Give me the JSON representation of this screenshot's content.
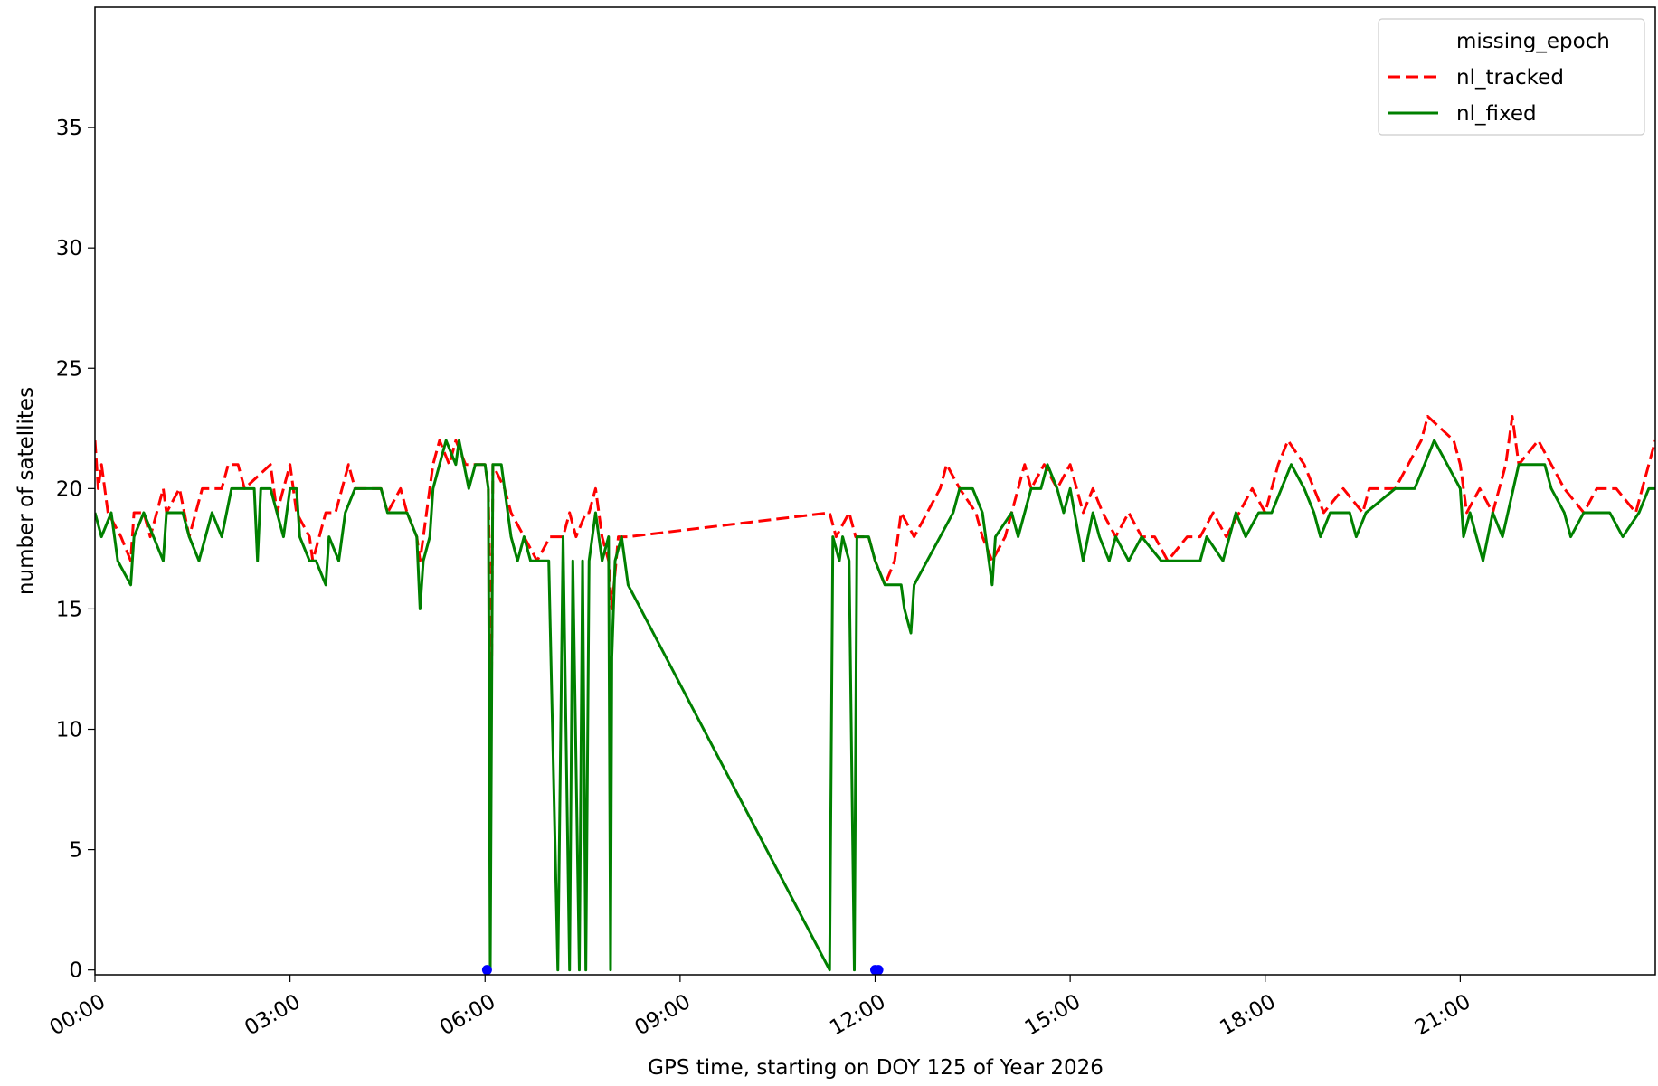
{
  "chart_data": {
    "type": "line",
    "xlabel": "GPS time, starting on DOY 125 of Year 2026",
    "ylabel": "number of satellites",
    "xlim": [
      0,
      24
    ],
    "ylim": [
      -0.2,
      40
    ],
    "xticks": [
      {
        "value": 0,
        "label": "00:00"
      },
      {
        "value": 3,
        "label": "03:00"
      },
      {
        "value": 6,
        "label": "06:00"
      },
      {
        "value": 9,
        "label": "09:00"
      },
      {
        "value": 12,
        "label": "12:00"
      },
      {
        "value": 15,
        "label": "15:00"
      },
      {
        "value": 18,
        "label": "18:00"
      },
      {
        "value": 21,
        "label": "21:00"
      }
    ],
    "yticks": [
      0,
      5,
      10,
      15,
      20,
      25,
      30,
      35
    ],
    "legend": "upper right",
    "series": [
      {
        "name": "missing_epoch",
        "color": "#0000ff",
        "linestyle": "none",
        "marker": "o",
        "x": [
          6.03,
          12.0,
          12.05
        ],
        "values": [
          0,
          0,
          0
        ]
      },
      {
        "name": "nl_tracked",
        "color": "#ff0000",
        "linestyle": "dashed",
        "x": [
          0,
          0.05,
          0.1,
          0.2,
          0.4,
          0.55,
          0.6,
          0.75,
          0.85,
          1.05,
          1.1,
          1.3,
          1.45,
          1.55,
          1.65,
          1.95,
          2.05,
          2.2,
          2.3,
          2.7,
          2.8,
          3.0,
          3.1,
          3.3,
          3.35,
          3.55,
          3.7,
          3.8,
          3.9,
          4.0,
          4.4,
          4.5,
          4.7,
          4.8,
          4.95,
          5.0,
          5.05,
          5.2,
          5.3,
          5.45,
          5.55,
          5.7,
          6.0,
          6.05,
          6.1,
          6.12,
          6.3,
          6.4,
          6.6,
          6.8,
          7.0,
          7.2,
          7.3,
          7.4,
          7.55,
          7.6,
          7.7,
          7.8,
          7.9,
          7.95,
          8.05,
          8.2,
          11.3,
          11.4,
          11.6,
          11.7,
          11.9,
          12.0,
          12.15,
          12.3,
          12.35,
          12.4,
          12.6,
          12.8,
          13.0,
          13.1,
          13.3,
          13.55,
          13.65,
          13.8,
          14.0,
          14.1,
          14.3,
          14.4,
          14.6,
          14.8,
          15.0,
          15.2,
          15.35,
          15.5,
          15.7,
          15.9,
          16.1,
          16.3,
          16.5,
          16.8,
          17.0,
          17.2,
          17.4,
          17.6,
          17.8,
          18.0,
          18.2,
          18.35,
          18.6,
          18.75,
          18.9,
          19.2,
          19.5,
          19.6,
          20.0,
          20.2,
          20.4,
          20.5,
          20.9,
          21.0,
          21.1,
          21.3,
          21.5,
          21.7,
          21.8,
          21.9,
          22.2,
          22.4,
          22.6,
          22.9,
          23.1,
          23.4,
          23.7,
          23.9,
          24.0
        ],
        "values": [
          22,
          20,
          21,
          19,
          18,
          17,
          19,
          19,
          18,
          20,
          19,
          20,
          18,
          19,
          20,
          20,
          21,
          21,
          20,
          21,
          19,
          21,
          19,
          18,
          17,
          19,
          19,
          20,
          21,
          20,
          20,
          19,
          20,
          19,
          18,
          17,
          18,
          21,
          22,
          21,
          22,
          21,
          21,
          20,
          12,
          21,
          20,
          19,
          18,
          17,
          18,
          18,
          19,
          18,
          19,
          19,
          20,
          18,
          17,
          15,
          18,
          18,
          19,
          18,
          19,
          18,
          18,
          17,
          16,
          17,
          18,
          19,
          18,
          19,
          20,
          21,
          20,
          19,
          18,
          17,
          18,
          19,
          21,
          20,
          21,
          20,
          21,
          19,
          20,
          19,
          18,
          19,
          18,
          18,
          17,
          18,
          18,
          19,
          18,
          19,
          20,
          19,
          21,
          22,
          21,
          20,
          19,
          20,
          19,
          20,
          20,
          21,
          22,
          23,
          22,
          21,
          19,
          20,
          19,
          21,
          23,
          21,
          22,
          21,
          20,
          19,
          20,
          20,
          19,
          21,
          22
        ]
      },
      {
        "name": "nl_fixed",
        "color": "#008000",
        "linestyle": "solid",
        "x": [
          0,
          0.1,
          0.25,
          0.35,
          0.55,
          0.6,
          0.75,
          1.05,
          1.1,
          1.35,
          1.45,
          1.6,
          1.7,
          1.8,
          1.95,
          2.1,
          2.2,
          2.3,
          2.45,
          2.5,
          2.55,
          2.7,
          2.8,
          2.9,
          3.0,
          3.1,
          3.15,
          3.3,
          3.4,
          3.55,
          3.6,
          3.75,
          3.85,
          4.0,
          4.4,
          4.5,
          4.8,
          4.95,
          5.0,
          5.05,
          5.15,
          5.2,
          5.3,
          5.4,
          5.55,
          5.6,
          5.75,
          5.85,
          6.0,
          6.05,
          6.08,
          6.12,
          6.25,
          6.4,
          6.5,
          6.6,
          6.7,
          6.85,
          6.98,
          7.12,
          7.2,
          7.3,
          7.35,
          7.45,
          7.5,
          7.55,
          7.6,
          7.7,
          7.8,
          7.9,
          7.93,
          7.95,
          8.0,
          8.1,
          8.2,
          11.3,
          11.35,
          11.45,
          11.5,
          11.6,
          11.68,
          11.72,
          11.9,
          12.0,
          12.15,
          12.4,
          12.45,
          12.55,
          12.6,
          12.8,
          13.0,
          13.2,
          13.3,
          13.5,
          13.65,
          13.75,
          13.8,
          13.85,
          14.1,
          14.2,
          14.4,
          14.55,
          14.65,
          14.8,
          14.9,
          15.0,
          15.2,
          15.35,
          15.45,
          15.6,
          15.7,
          15.9,
          16.1,
          16.4,
          17.0,
          17.1,
          17.35,
          17.55,
          17.7,
          17.9,
          18.1,
          18.25,
          18.4,
          18.6,
          18.75,
          18.85,
          19.0,
          19.3,
          19.4,
          19.55,
          20.0,
          20.3,
          20.6,
          20.8,
          21.0,
          21.05,
          21.15,
          21.35,
          21.5,
          21.65,
          21.9,
          22.3,
          22.4,
          22.6,
          22.7,
          22.9,
          23.3,
          23.5,
          23.75,
          23.9,
          24.0
        ],
        "values": [
          19,
          18,
          19,
          17,
          16,
          18,
          19,
          17,
          19,
          19,
          18,
          17,
          18,
          19,
          18,
          20,
          20,
          20,
          20,
          17,
          20,
          20,
          19,
          18,
          20,
          20,
          18,
          17,
          17,
          16,
          18,
          17,
          19,
          20,
          20,
          19,
          19,
          18,
          15,
          17,
          18,
          20,
          21,
          22,
          21,
          22,
          20,
          21,
          21,
          20,
          0,
          21,
          21,
          18,
          17,
          18,
          17,
          17,
          17,
          0,
          18,
          0,
          17,
          0,
          17,
          0,
          17,
          19,
          17,
          18,
          0,
          13,
          17,
          18,
          16,
          0,
          18,
          17,
          18,
          17,
          0,
          18,
          18,
          17,
          16,
          16,
          15,
          14,
          16,
          17,
          18,
          19,
          20,
          20,
          19,
          17,
          16,
          18,
          19,
          18,
          20,
          20,
          21,
          20,
          19,
          20,
          17,
          19,
          18,
          17,
          18,
          17,
          18,
          17,
          17,
          18,
          17,
          19,
          18,
          19,
          19,
          20,
          21,
          20,
          19,
          18,
          19,
          19,
          18,
          19,
          20,
          20,
          22,
          21,
          20,
          18,
          19,
          17,
          19,
          18,
          21,
          21,
          20,
          19,
          18,
          19,
          19,
          18,
          19,
          20,
          20
        ]
      }
    ]
  }
}
